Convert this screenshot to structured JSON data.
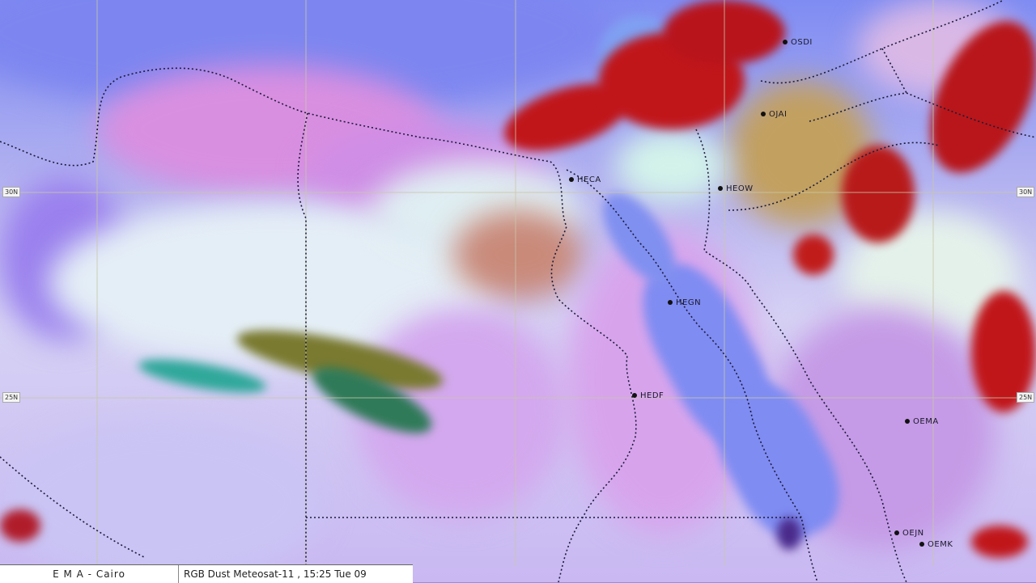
{
  "caption": {
    "agency": "E M A  -  Cairo",
    "product": "RGB Dust Meteosat-11 , 15:25  Tue 09"
  },
  "latitude_labels": [
    "30N",
    "25N"
  ],
  "stations": [
    {
      "id": "OSDI"
    },
    {
      "id": "OJAI"
    },
    {
      "id": "HECA"
    },
    {
      "id": "HEOW"
    },
    {
      "id": "HEGN"
    },
    {
      "id": "HEDF"
    },
    {
      "id": "OEMA"
    },
    {
      "id": "OEJN"
    },
    {
      "id": "OEMK"
    }
  ],
  "colors": {
    "sea": "#7f8cf2",
    "dust": "#e8ecf6",
    "thick_cloud": "#c0161a",
    "graticule": "#c8c8a8"
  }
}
